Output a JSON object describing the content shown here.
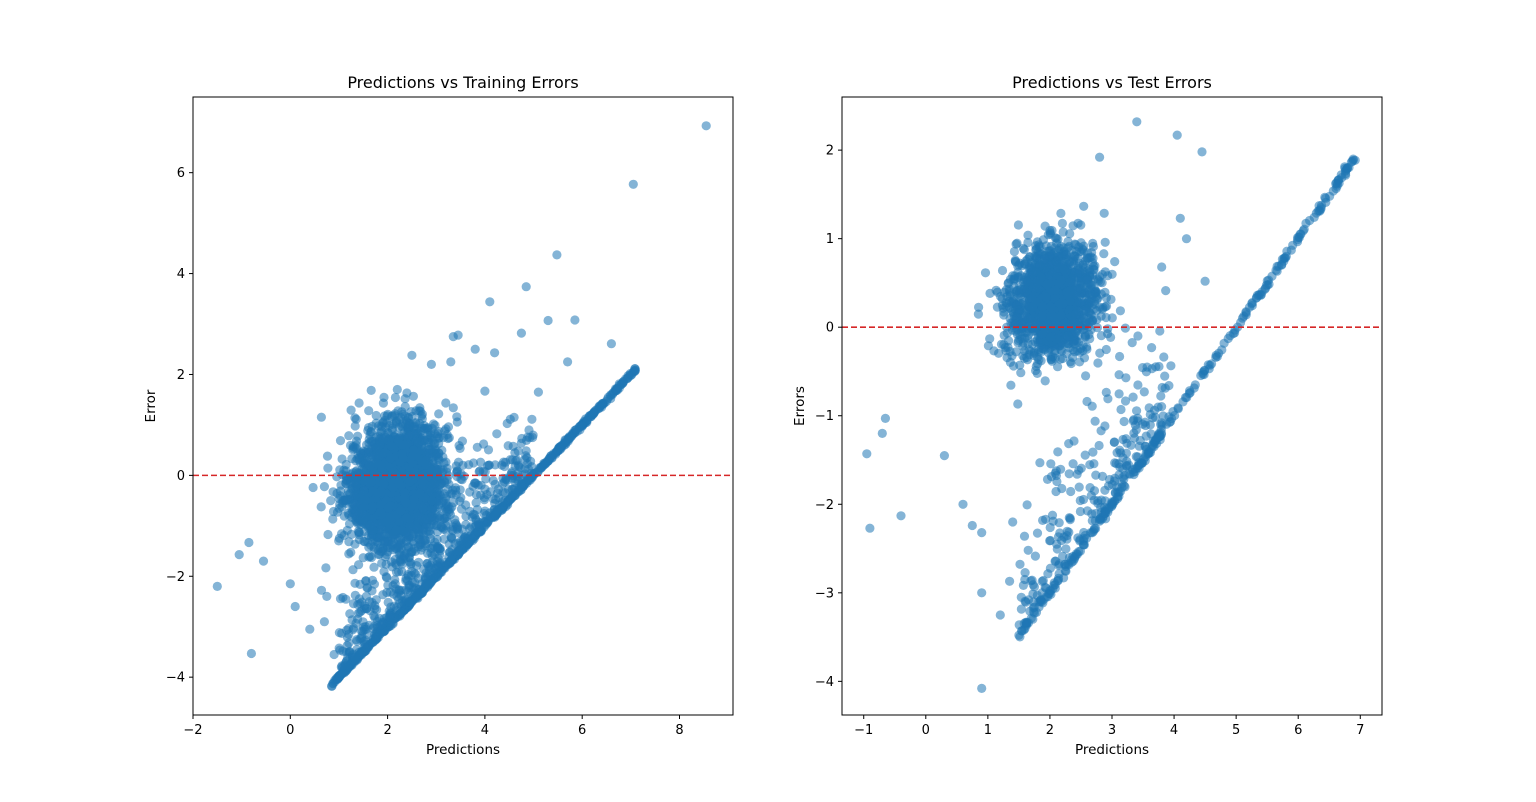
{
  "chart_data": [
    {
      "type": "scatter",
      "title": "Predictions vs Training Errors",
      "xlabel": "Predictions",
      "ylabel": "Error",
      "xlim": [
        -2,
        9.1
      ],
      "ylim": [
        -4.75,
        7.5
      ],
      "xticks": [
        -2,
        0,
        2,
        4,
        6,
        8
      ],
      "yticks": [
        -4,
        -2,
        0,
        2,
        4,
        6
      ],
      "point_color": "#1f77b4",
      "point_alpha": 0.55,
      "reference_line": {
        "y": 0,
        "color": "#d62728",
        "style": "dashed"
      },
      "grid": false,
      "points": {
        "diagonal_band": {
          "x_from": 0.85,
          "x_to": 7.1,
          "relation": "error = prediction - 5.0"
        },
        "dense_cluster": {
          "x_center": 2.2,
          "y_center": -0.2,
          "x_spread": 0.9,
          "y_spread": 0.8
        },
        "outliers": [
          [
            8.55,
            6.93
          ],
          [
            7.05,
            5.77
          ],
          [
            5.48,
            4.37
          ],
          [
            4.1,
            3.44
          ],
          [
            4.85,
            3.74
          ],
          [
            5.3,
            3.07
          ],
          [
            5.85,
            3.08
          ],
          [
            4.75,
            2.82
          ],
          [
            6.6,
            2.61
          ],
          [
            5.7,
            2.25
          ],
          [
            3.45,
            2.78
          ],
          [
            3.35,
            2.75
          ],
          [
            3.8,
            2.5
          ],
          [
            4.2,
            2.43
          ],
          [
            2.5,
            2.38
          ],
          [
            2.9,
            2.2
          ],
          [
            3.3,
            2.25
          ],
          [
            4.0,
            1.67
          ],
          [
            5.1,
            1.65
          ],
          [
            4.6,
            1.15
          ],
          [
            -1.5,
            -2.2
          ],
          [
            -0.8,
            -3.53
          ],
          [
            -1.05,
            -1.57
          ],
          [
            -0.85,
            -1.33
          ],
          [
            -0.55,
            -1.7
          ],
          [
            0.1,
            -2.6
          ],
          [
            0.4,
            -3.05
          ],
          [
            0.85,
            -4.18
          ],
          [
            0.9,
            -3.55
          ],
          [
            0.95,
            -4.02
          ],
          [
            1.2,
            -3.15
          ],
          [
            0.7,
            -2.9
          ],
          [
            0.75,
            -2.4
          ],
          [
            0.0,
            -2.15
          ],
          [
            1.05,
            -3.8
          ]
        ]
      }
    },
    {
      "type": "scatter",
      "title": "Predictions vs Test Errors",
      "xlabel": "Predictions",
      "ylabel": "Errors",
      "xlim": [
        -1.35,
        7.35
      ],
      "ylim": [
        -4.38,
        2.6
      ],
      "xticks": [
        -1,
        0,
        1,
        2,
        3,
        4,
        5,
        6,
        7
      ],
      "yticks": [
        -4,
        -3,
        -2,
        -1,
        0,
        1,
        2
      ],
      "point_color": "#1f77b4",
      "point_alpha": 0.55,
      "reference_line": {
        "y": 0,
        "color": "#d62728",
        "style": "dashed"
      },
      "grid": false,
      "points": {
        "diagonal_band": {
          "x_from": 1.5,
          "x_to": 6.95,
          "relation": "error = prediction - 5.0"
        },
        "dense_cluster": {
          "x_center": 2.05,
          "y_center": 0.3,
          "x_spread": 0.65,
          "y_spread": 0.42
        },
        "outliers": [
          [
            3.4,
            2.32
          ],
          [
            4.05,
            2.17
          ],
          [
            4.45,
            1.98
          ],
          [
            2.8,
            1.92
          ],
          [
            -0.95,
            -1.43
          ],
          [
            -0.9,
            -2.27
          ],
          [
            -0.4,
            -2.13
          ],
          [
            -0.7,
            -1.2
          ],
          [
            -0.65,
            -1.03
          ],
          [
            0.9,
            -4.08
          ],
          [
            0.9,
            -3.0
          ],
          [
            1.2,
            -3.25
          ],
          [
            1.5,
            -3.48
          ],
          [
            1.55,
            -3.43
          ],
          [
            1.35,
            -2.87
          ],
          [
            0.3,
            -1.45
          ],
          [
            0.6,
            -2.0
          ],
          [
            0.75,
            -2.24
          ],
          [
            0.9,
            -2.32
          ],
          [
            1.65,
            -2.52
          ],
          [
            4.1,
            1.23
          ],
          [
            4.2,
            1.0
          ],
          [
            4.5,
            0.52
          ],
          [
            3.8,
            0.68
          ],
          [
            1.4,
            -2.2
          ]
        ]
      }
    }
  ]
}
